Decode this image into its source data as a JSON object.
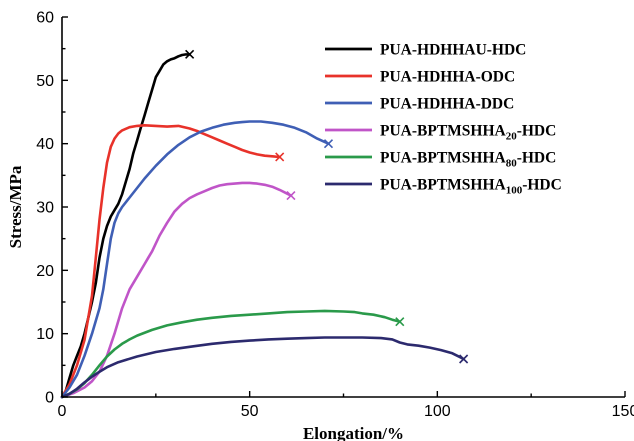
{
  "chart_data": {
    "type": "line",
    "xlabel": "Elongation/%",
    "ylabel": "Stress/MPa",
    "xlim": [
      0,
      150
    ],
    "ylim": [
      0,
      60
    ],
    "xticks": [
      0,
      50,
      100,
      150
    ],
    "yticks": [
      0,
      10,
      20,
      30,
      40,
      50,
      60
    ],
    "legend_position": "top-right",
    "series": [
      {
        "name": "PUA-HDHHAU-HDC",
        "name_parts": [
          {
            "text": "PUA-HDHHAU-HDC",
            "sub": false
          }
        ],
        "color": "#000000",
        "points": [
          [
            0,
            0
          ],
          [
            1,
            1
          ],
          [
            2,
            3
          ],
          [
            3,
            5
          ],
          [
            4,
            6.5
          ],
          [
            5,
            8
          ],
          [
            6,
            10
          ],
          [
            7,
            12.5
          ],
          [
            8,
            15
          ],
          [
            9,
            18
          ],
          [
            10,
            22
          ],
          [
            11,
            25
          ],
          [
            12,
            27
          ],
          [
            13,
            28.5
          ],
          [
            14,
            29.5
          ],
          [
            15,
            30.5
          ],
          [
            16,
            32
          ],
          [
            17,
            34
          ],
          [
            18,
            36
          ],
          [
            19,
            38.5
          ],
          [
            20,
            40.5
          ],
          [
            21,
            42.5
          ],
          [
            22,
            44.5
          ],
          [
            23,
            46.5
          ],
          [
            24,
            48.5
          ],
          [
            25,
            50.5
          ],
          [
            26,
            51.5
          ],
          [
            27,
            52.5
          ],
          [
            28,
            53
          ],
          [
            29,
            53.3
          ],
          [
            30,
            53.5
          ],
          [
            31,
            53.8
          ],
          [
            32,
            54
          ],
          [
            33,
            54.1
          ],
          [
            34,
            54.1
          ]
        ],
        "break_point": [
          34,
          54.1
        ]
      },
      {
        "name": "PUA-HDHHA-ODC",
        "name_parts": [
          {
            "text": "PUA-HDHHA-ODC",
            "sub": false
          }
        ],
        "color": "#e8322a",
        "points": [
          [
            0,
            0
          ],
          [
            2,
            2
          ],
          [
            4,
            5
          ],
          [
            6,
            9
          ],
          [
            8,
            16
          ],
          [
            9,
            22
          ],
          [
            10,
            28
          ],
          [
            11,
            33
          ],
          [
            12,
            37
          ],
          [
            13,
            39.5
          ],
          [
            14,
            40.8
          ],
          [
            15,
            41.6
          ],
          [
            16,
            42.1
          ],
          [
            18,
            42.6
          ],
          [
            20,
            42.8
          ],
          [
            22,
            42.9
          ],
          [
            25,
            42.8
          ],
          [
            28,
            42.7
          ],
          [
            31,
            42.8
          ],
          [
            34,
            42.4
          ],
          [
            36,
            42
          ],
          [
            38,
            41.5
          ],
          [
            40,
            41
          ],
          [
            42,
            40.5
          ],
          [
            44,
            40
          ],
          [
            46,
            39.5
          ],
          [
            48,
            39
          ],
          [
            50,
            38.6
          ],
          [
            52,
            38.3
          ],
          [
            54,
            38.1
          ],
          [
            56,
            38
          ],
          [
            58,
            37.9
          ]
        ],
        "break_point": [
          58,
          37.9
        ]
      },
      {
        "name": "PUA-HDHHA-DDC",
        "name_parts": [
          {
            "text": "PUA-HDHHA-DDC",
            "sub": false
          }
        ],
        "color": "#3f5fb5",
        "points": [
          [
            0,
            0
          ],
          [
            2,
            1.5
          ],
          [
            4,
            3.5
          ],
          [
            6,
            6.5
          ],
          [
            8,
            10
          ],
          [
            10,
            14
          ],
          [
            11,
            17
          ],
          [
            12,
            21
          ],
          [
            13,
            25
          ],
          [
            14,
            27.5
          ],
          [
            15,
            29
          ],
          [
            16,
            30
          ],
          [
            18,
            31.5
          ],
          [
            20,
            33
          ],
          [
            22,
            34.5
          ],
          [
            25,
            36.5
          ],
          [
            28,
            38.3
          ],
          [
            31,
            39.8
          ],
          [
            34,
            41
          ],
          [
            37,
            41.9
          ],
          [
            40,
            42.5
          ],
          [
            43,
            43
          ],
          [
            46,
            43.3
          ],
          [
            48,
            43.4
          ],
          [
            50,
            43.5
          ],
          [
            53,
            43.5
          ],
          [
            56,
            43.3
          ],
          [
            59,
            43
          ],
          [
            62,
            42.5
          ],
          [
            65,
            41.8
          ],
          [
            68,
            40.8
          ],
          [
            71,
            40
          ]
        ],
        "break_point": [
          71,
          40
        ]
      },
      {
        "name": "PUA-BPTMSHHA20-HDC",
        "name_parts": [
          {
            "text": "PUA-BPTMSHHA",
            "sub": false
          },
          {
            "text": "20",
            "sub": true
          },
          {
            "text": "-HDC",
            "sub": false
          }
        ],
        "color": "#c055c8",
        "points": [
          [
            0,
            0
          ],
          [
            3,
            0.6
          ],
          [
            6,
            1.5
          ],
          [
            8,
            2.5
          ],
          [
            10,
            4
          ],
          [
            12,
            6.5
          ],
          [
            14,
            10
          ],
          [
            16,
            14
          ],
          [
            18,
            17
          ],
          [
            20,
            19
          ],
          [
            22,
            21
          ],
          [
            23,
            22
          ],
          [
            24,
            23
          ],
          [
            26,
            25.5
          ],
          [
            28,
            27.5
          ],
          [
            30,
            29.3
          ],
          [
            32,
            30.5
          ],
          [
            34,
            31.4
          ],
          [
            36,
            32
          ],
          [
            38,
            32.5
          ],
          [
            40,
            33
          ],
          [
            42,
            33.4
          ],
          [
            44,
            33.6
          ],
          [
            46,
            33.7
          ],
          [
            48,
            33.8
          ],
          [
            50,
            33.8
          ],
          [
            52,
            33.7
          ],
          [
            54,
            33.5
          ],
          [
            56,
            33.2
          ],
          [
            58,
            32.7
          ],
          [
            60,
            32.1
          ],
          [
            61,
            31.8
          ]
        ],
        "break_point": [
          61,
          31.8
        ]
      },
      {
        "name": "PUA-BPTMSHHA80-HDC",
        "name_parts": [
          {
            "text": "PUA-BPTMSHHA",
            "sub": false
          },
          {
            "text": "80",
            "sub": true
          },
          {
            "text": "-HDC",
            "sub": false
          }
        ],
        "color": "#2a9a4a",
        "points": [
          [
            0,
            0
          ],
          [
            2,
            0.5
          ],
          [
            4,
            1.2
          ],
          [
            6,
            2.2
          ],
          [
            8,
            3.5
          ],
          [
            10,
            5
          ],
          [
            12,
            6.4
          ],
          [
            14,
            7.5
          ],
          [
            16,
            8.4
          ],
          [
            18,
            9.1
          ],
          [
            20,
            9.7
          ],
          [
            24,
            10.6
          ],
          [
            28,
            11.3
          ],
          [
            32,
            11.8
          ],
          [
            36,
            12.2
          ],
          [
            40,
            12.5
          ],
          [
            45,
            12.8
          ],
          [
            50,
            13
          ],
          [
            55,
            13.2
          ],
          [
            60,
            13.4
          ],
          [
            65,
            13.5
          ],
          [
            70,
            13.6
          ],
          [
            75,
            13.5
          ],
          [
            78,
            13.4
          ],
          [
            80,
            13.2
          ],
          [
            83,
            13
          ],
          [
            86,
            12.6
          ],
          [
            88,
            12.2
          ],
          [
            90,
            11.9
          ]
        ],
        "break_point": [
          90,
          11.9
        ]
      },
      {
        "name": "PUA-BPTMSHHA100-HDC",
        "name_parts": [
          {
            "text": "PUA-BPTMSHHA",
            "sub": false
          },
          {
            "text": "100",
            "sub": true
          },
          {
            "text": "-HDC",
            "sub": false
          }
        ],
        "color": "#2c2a6e",
        "points": [
          [
            0,
            0
          ],
          [
            2,
            0.5
          ],
          [
            4,
            1.3
          ],
          [
            6,
            2.3
          ],
          [
            8,
            3.2
          ],
          [
            10,
            4
          ],
          [
            12,
            4.7
          ],
          [
            15,
            5.5
          ],
          [
            20,
            6.4
          ],
          [
            25,
            7.1
          ],
          [
            30,
            7.6
          ],
          [
            35,
            8
          ],
          [
            40,
            8.4
          ],
          [
            45,
            8.7
          ],
          [
            50,
            8.9
          ],
          [
            55,
            9.1
          ],
          [
            60,
            9.2
          ],
          [
            65,
            9.3
          ],
          [
            70,
            9.4
          ],
          [
            75,
            9.4
          ],
          [
            80,
            9.4
          ],
          [
            85,
            9.3
          ],
          [
            88,
            9.1
          ],
          [
            90,
            8.6
          ],
          [
            92,
            8.3
          ],
          [
            95,
            8.1
          ],
          [
            98,
            7.8
          ],
          [
            101,
            7.4
          ],
          [
            104,
            6.9
          ],
          [
            106,
            6.3
          ],
          [
            107,
            6
          ]
        ],
        "break_point": [
          107,
          6
        ]
      }
    ]
  }
}
